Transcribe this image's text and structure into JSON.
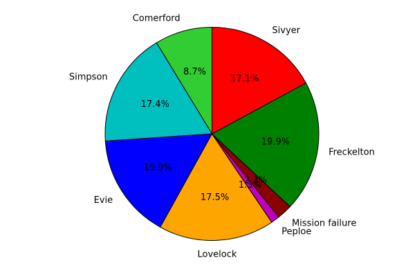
{
  "chart_data": {
    "type": "pie",
    "start_angle_deg": 90,
    "direction": "counterclockwise",
    "title": "",
    "legend": "none",
    "slices": [
      {
        "label": "Comerford",
        "value": 8.7,
        "pct_text": "8.7%",
        "color": "#32cd32"
      },
      {
        "label": "Simpson",
        "value": 17.4,
        "pct_text": "17.4%",
        "color": "#00bfbf"
      },
      {
        "label": "Evie",
        "value": 15.9,
        "pct_text": "15.9%",
        "color": "#0000ff"
      },
      {
        "label": "Lovelock",
        "value": 17.5,
        "pct_text": "17.5%",
        "color": "#ffa500"
      },
      {
        "label": "Peploe",
        "value": 1.3,
        "pct_text": "1.3%",
        "color": "#bf00bf"
      },
      {
        "label": "Mission failure",
        "value": 2.3,
        "pct_text": "2.3%",
        "color": "#8b0000"
      },
      {
        "label": "Freckelton",
        "value": 19.9,
        "pct_text": "19.9%",
        "color": "#008000"
      },
      {
        "label": "Sivyer",
        "value": 17.1,
        "pct_text": "17.1%",
        "color": "#ff0000"
      }
    ]
  }
}
